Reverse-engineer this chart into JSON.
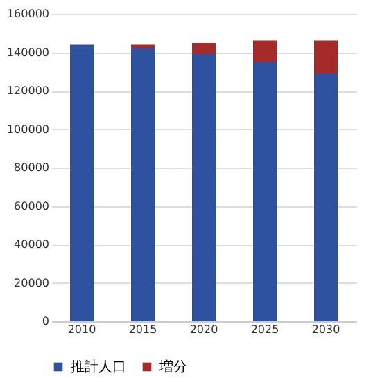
{
  "chart_data": {
    "type": "bar",
    "stacked": true,
    "categories": [
      "2010",
      "2015",
      "2020",
      "2025",
      "2030"
    ],
    "series": [
      {
        "name": "推計人口",
        "color": "#2f52a0",
        "values": [
          144000,
          142200,
          139100,
          134800,
          129000
        ]
      },
      {
        "name": "増分",
        "color": "#a52a2a",
        "values": [
          0,
          1800,
          5800,
          11300,
          17100
        ]
      }
    ],
    "ylim": [
      0,
      160000
    ],
    "yticks": [
      0,
      20000,
      40000,
      60000,
      80000,
      100000,
      120000,
      140000,
      160000
    ],
    "grid": "y",
    "legend": "bottom"
  }
}
